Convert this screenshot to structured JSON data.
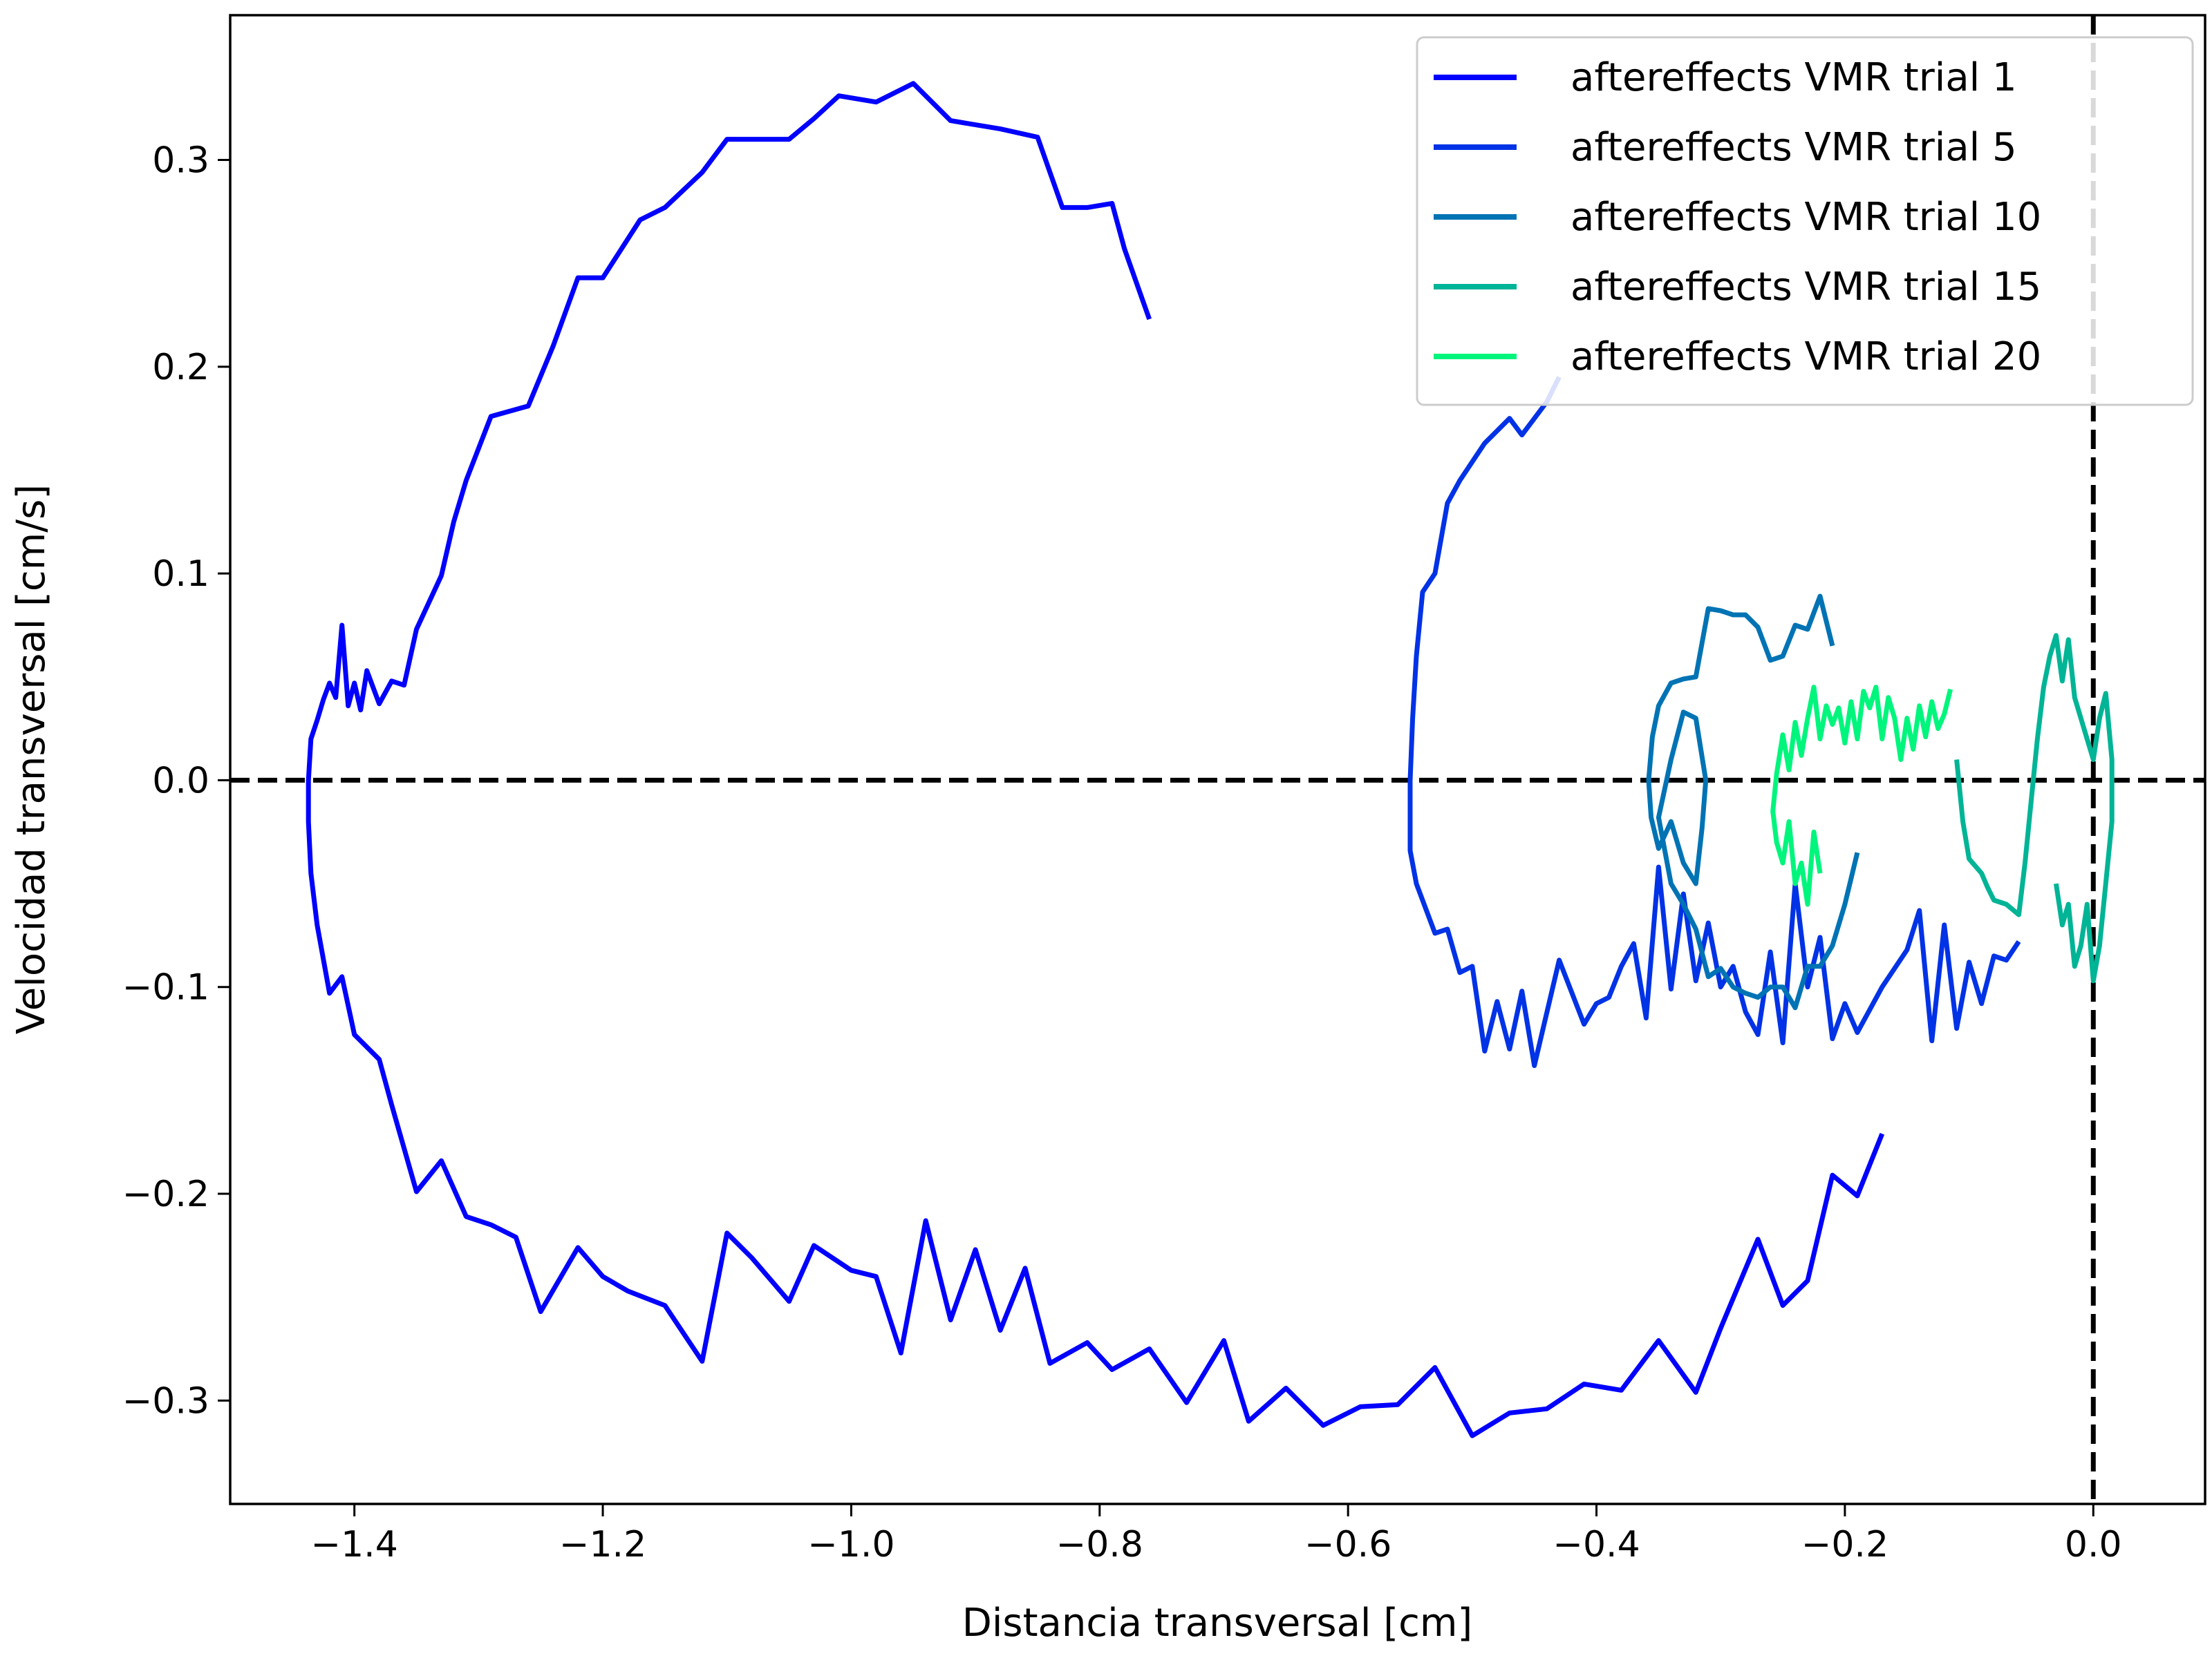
{
  "chart_data": {
    "type": "line",
    "title": "",
    "xlabel": "Distancia transversal [cm]",
    "ylabel": "Velocidad transversal [cm/s]",
    "xlim": [
      -1.5,
      0.09
    ],
    "ylim": [
      -0.35,
      0.37
    ],
    "xticks": [
      -1.4,
      -1.2,
      -1.0,
      -0.8,
      -0.6,
      -0.4,
      -0.2,
      0.0
    ],
    "xtick_labels": [
      "−1.4",
      "−1.2",
      "−1.0",
      "−0.8",
      "−0.6",
      "−0.4",
      "−0.2",
      "0.0"
    ],
    "yticks": [
      -0.3,
      -0.2,
      -0.1,
      0.0,
      0.1,
      0.2,
      0.3
    ],
    "ytick_labels": [
      "−0.3",
      "−0.2",
      "−0.1",
      "0.0",
      "0.1",
      "0.2",
      "0.3"
    ],
    "grid": false,
    "legend_position": "top-right",
    "reference_lines": [
      {
        "orientation": "horizontal",
        "value": 0.0,
        "style": "dashed",
        "color": "#000000"
      },
      {
        "orientation": "vertical",
        "value": 0.0,
        "style": "dashed",
        "color": "#000000"
      }
    ],
    "series": [
      {
        "name": "aftereffects VMR trial 1",
        "color": "#0000ff",
        "points": [
          [
            -0.76,
            0.223
          ],
          [
            -0.78,
            0.257
          ],
          [
            -0.79,
            0.279
          ],
          [
            -0.81,
            0.277
          ],
          [
            -0.83,
            0.277
          ],
          [
            -0.85,
            0.311
          ],
          [
            -0.88,
            0.315
          ],
          [
            -0.92,
            0.319
          ],
          [
            -0.95,
            0.337
          ],
          [
            -0.98,
            0.328
          ],
          [
            -1.01,
            0.331
          ],
          [
            -1.03,
            0.32
          ],
          [
            -1.05,
            0.31
          ],
          [
            -1.08,
            0.31
          ],
          [
            -1.1,
            0.31
          ],
          [
            -1.12,
            0.294
          ],
          [
            -1.15,
            0.277
          ],
          [
            -1.17,
            0.271
          ],
          [
            -1.2,
            0.243
          ],
          [
            -1.22,
            0.243
          ],
          [
            -1.24,
            0.21
          ],
          [
            -1.26,
            0.181
          ],
          [
            -1.29,
            0.176
          ],
          [
            -1.31,
            0.145
          ],
          [
            -1.32,
            0.125
          ],
          [
            -1.33,
            0.099
          ],
          [
            -1.35,
            0.073
          ],
          [
            -1.36,
            0.046
          ],
          [
            -1.37,
            0.048
          ],
          [
            -1.38,
            0.037
          ],
          [
            -1.39,
            0.053
          ],
          [
            -1.395,
            0.034
          ],
          [
            -1.4,
            0.047
          ],
          [
            -1.405,
            0.036
          ],
          [
            -1.41,
            0.075
          ],
          [
            -1.415,
            0.04
          ],
          [
            -1.42,
            0.047
          ],
          [
            -1.425,
            0.039
          ],
          [
            -1.43,
            0.029
          ],
          [
            -1.435,
            0.02
          ],
          [
            -1.437,
            0.0
          ],
          [
            -1.437,
            -0.02
          ],
          [
            -1.435,
            -0.045
          ],
          [
            -1.43,
            -0.07
          ],
          [
            -1.42,
            -0.103
          ],
          [
            -1.41,
            -0.095
          ],
          [
            -1.4,
            -0.123
          ],
          [
            -1.38,
            -0.135
          ],
          [
            -1.37,
            -0.157
          ],
          [
            -1.35,
            -0.199
          ],
          [
            -1.33,
            -0.184
          ],
          [
            -1.31,
            -0.211
          ],
          [
            -1.29,
            -0.215
          ],
          [
            -1.27,
            -0.221
          ],
          [
            -1.25,
            -0.257
          ],
          [
            -1.22,
            -0.226
          ],
          [
            -1.2,
            -0.24
          ],
          [
            -1.18,
            -0.247
          ],
          [
            -1.15,
            -0.254
          ],
          [
            -1.12,
            -0.281
          ],
          [
            -1.1,
            -0.219
          ],
          [
            -1.08,
            -0.231
          ],
          [
            -1.05,
            -0.252
          ],
          [
            -1.03,
            -0.225
          ],
          [
            -1.0,
            -0.237
          ],
          [
            -0.98,
            -0.24
          ],
          [
            -0.96,
            -0.277
          ],
          [
            -0.94,
            -0.213
          ],
          [
            -0.92,
            -0.261
          ],
          [
            -0.9,
            -0.227
          ],
          [
            -0.88,
            -0.266
          ],
          [
            -0.86,
            -0.236
          ],
          [
            -0.84,
            -0.282
          ],
          [
            -0.81,
            -0.272
          ],
          [
            -0.79,
            -0.285
          ],
          [
            -0.76,
            -0.275
          ],
          [
            -0.73,
            -0.301
          ],
          [
            -0.7,
            -0.271
          ],
          [
            -0.68,
            -0.31
          ],
          [
            -0.65,
            -0.294
          ],
          [
            -0.62,
            -0.312
          ],
          [
            -0.59,
            -0.303
          ],
          [
            -0.56,
            -0.302
          ],
          [
            -0.53,
            -0.284
          ],
          [
            -0.5,
            -0.317
          ],
          [
            -0.47,
            -0.306
          ],
          [
            -0.44,
            -0.304
          ],
          [
            -0.41,
            -0.292
          ],
          [
            -0.38,
            -0.295
          ],
          [
            -0.35,
            -0.271
          ],
          [
            -0.32,
            -0.296
          ],
          [
            -0.3,
            -0.265
          ],
          [
            -0.27,
            -0.222
          ],
          [
            -0.25,
            -0.254
          ],
          [
            -0.23,
            -0.242
          ],
          [
            -0.21,
            -0.191
          ],
          [
            -0.19,
            -0.201
          ],
          [
            -0.17,
            -0.171
          ]
        ]
      },
      {
        "name": "aftereffects VMR trial 5",
        "color": "#0032e6",
        "points": [
          [
            -0.43,
            0.195
          ],
          [
            -0.44,
            0.183
          ],
          [
            -0.46,
            0.167
          ],
          [
            -0.47,
            0.175
          ],
          [
            -0.49,
            0.163
          ],
          [
            -0.51,
            0.145
          ],
          [
            -0.52,
            0.134
          ],
          [
            -0.53,
            0.1
          ],
          [
            -0.54,
            0.091
          ],
          [
            -0.545,
            0.06
          ],
          [
            -0.548,
            0.03
          ],
          [
            -0.55,
            0.0
          ],
          [
            -0.55,
            -0.034
          ],
          [
            -0.545,
            -0.05
          ],
          [
            -0.53,
            -0.074
          ],
          [
            -0.52,
            -0.072
          ],
          [
            -0.51,
            -0.093
          ],
          [
            -0.5,
            -0.09
          ],
          [
            -0.49,
            -0.131
          ],
          [
            -0.48,
            -0.107
          ],
          [
            -0.47,
            -0.13
          ],
          [
            -0.46,
            -0.102
          ],
          [
            -0.45,
            -0.138
          ],
          [
            -0.43,
            -0.087
          ],
          [
            -0.41,
            -0.118
          ],
          [
            -0.4,
            -0.108
          ],
          [
            -0.39,
            -0.105
          ],
          [
            -0.38,
            -0.09
          ],
          [
            -0.37,
            -0.079
          ],
          [
            -0.36,
            -0.115
          ],
          [
            -0.35,
            -0.042
          ],
          [
            -0.34,
            -0.101
          ],
          [
            -0.33,
            -0.055
          ],
          [
            -0.32,
            -0.097
          ],
          [
            -0.31,
            -0.069
          ],
          [
            -0.3,
            -0.1
          ],
          [
            -0.29,
            -0.09
          ],
          [
            -0.28,
            -0.112
          ],
          [
            -0.27,
            -0.123
          ],
          [
            -0.26,
            -0.083
          ],
          [
            -0.25,
            -0.127
          ],
          [
            -0.24,
            -0.05
          ],
          [
            -0.23,
            -0.1
          ],
          [
            -0.22,
            -0.076
          ],
          [
            -0.21,
            -0.125
          ],
          [
            -0.2,
            -0.108
          ],
          [
            -0.19,
            -0.122
          ],
          [
            -0.17,
            -0.1
          ],
          [
            -0.15,
            -0.082
          ],
          [
            -0.14,
            -0.063
          ],
          [
            -0.13,
            -0.126
          ],
          [
            -0.12,
            -0.07
          ],
          [
            -0.11,
            -0.12
          ],
          [
            -0.1,
            -0.088
          ],
          [
            -0.09,
            -0.108
          ],
          [
            -0.08,
            -0.085
          ],
          [
            -0.07,
            -0.087
          ],
          [
            -0.06,
            -0.078
          ]
        ]
      },
      {
        "name": "aftereffects VMR trial 10",
        "color": "#0073b4",
        "points": [
          [
            -0.21,
            0.065
          ],
          [
            -0.22,
            0.089
          ],
          [
            -0.23,
            0.073
          ],
          [
            -0.24,
            0.075
          ],
          [
            -0.25,
            0.06
          ],
          [
            -0.26,
            0.058
          ],
          [
            -0.27,
            0.074
          ],
          [
            -0.28,
            0.08
          ],
          [
            -0.29,
            0.08
          ],
          [
            -0.3,
            0.082
          ],
          [
            -0.31,
            0.083
          ],
          [
            -0.32,
            0.05
          ],
          [
            -0.33,
            0.049
          ],
          [
            -0.34,
            0.047
          ],
          [
            -0.35,
            0.036
          ],
          [
            -0.355,
            0.021
          ],
          [
            -0.358,
            0.0
          ],
          [
            -0.356,
            -0.018
          ],
          [
            -0.35,
            -0.033
          ],
          [
            -0.34,
            -0.02
          ],
          [
            -0.33,
            -0.04
          ],
          [
            -0.32,
            -0.05
          ],
          [
            -0.315,
            -0.023
          ],
          [
            -0.312,
            0.0
          ],
          [
            -0.32,
            0.03
          ],
          [
            -0.33,
            0.033
          ],
          [
            -0.34,
            0.01
          ],
          [
            -0.35,
            -0.018
          ],
          [
            -0.34,
            -0.05
          ],
          [
            -0.33,
            -0.06
          ],
          [
            -0.32,
            -0.072
          ],
          [
            -0.31,
            -0.095
          ],
          [
            -0.3,
            -0.091
          ],
          [
            -0.29,
            -0.1
          ],
          [
            -0.28,
            -0.103
          ],
          [
            -0.27,
            -0.105
          ],
          [
            -0.26,
            -0.1
          ],
          [
            -0.25,
            -0.1
          ],
          [
            -0.24,
            -0.11
          ],
          [
            -0.23,
            -0.09
          ],
          [
            -0.22,
            -0.09
          ],
          [
            -0.21,
            -0.08
          ],
          [
            -0.2,
            -0.06
          ],
          [
            -0.19,
            -0.035
          ]
        ]
      },
      {
        "name": "aftereffects VMR trial 15",
        "color": "#00b496",
        "points": [
          [
            -0.11,
            0.01
          ],
          [
            -0.105,
            -0.02
          ],
          [
            -0.1,
            -0.038
          ],
          [
            -0.09,
            -0.045
          ],
          [
            -0.085,
            -0.052
          ],
          [
            -0.08,
            -0.058
          ],
          [
            -0.07,
            -0.06
          ],
          [
            -0.06,
            -0.065
          ],
          [
            -0.055,
            -0.04
          ],
          [
            -0.05,
            -0.01
          ],
          [
            -0.045,
            0.02
          ],
          [
            -0.04,
            0.045
          ],
          [
            -0.035,
            0.06
          ],
          [
            -0.03,
            0.07
          ],
          [
            -0.025,
            0.048
          ],
          [
            -0.02,
            0.068
          ],
          [
            -0.015,
            0.04
          ],
          [
            -0.01,
            0.03
          ],
          [
            -0.005,
            0.02
          ],
          [
            0.0,
            0.01
          ],
          [
            0.005,
            0.03
          ],
          [
            0.01,
            0.042
          ],
          [
            0.015,
            0.01
          ],
          [
            0.015,
            -0.02
          ],
          [
            0.01,
            -0.05
          ],
          [
            0.005,
            -0.08
          ],
          [
            0.0,
            -0.097
          ],
          [
            -0.005,
            -0.06
          ],
          [
            -0.01,
            -0.08
          ],
          [
            -0.015,
            -0.09
          ],
          [
            -0.02,
            -0.06
          ],
          [
            -0.025,
            -0.07
          ],
          [
            -0.03,
            -0.05
          ]
        ]
      },
      {
        "name": "aftereffects VMR trial 20",
        "color": "#00f57d",
        "points": [
          [
            -0.115,
            0.044
          ],
          [
            -0.12,
            0.032
          ],
          [
            -0.125,
            0.025
          ],
          [
            -0.13,
            0.038
          ],
          [
            -0.135,
            0.021
          ],
          [
            -0.14,
            0.036
          ],
          [
            -0.145,
            0.015
          ],
          [
            -0.15,
            0.03
          ],
          [
            -0.155,
            0.01
          ],
          [
            -0.16,
            0.03
          ],
          [
            -0.165,
            0.04
          ],
          [
            -0.17,
            0.02
          ],
          [
            -0.175,
            0.045
          ],
          [
            -0.18,
            0.035
          ],
          [
            -0.185,
            0.043
          ],
          [
            -0.19,
            0.02
          ],
          [
            -0.195,
            0.038
          ],
          [
            -0.2,
            0.018
          ],
          [
            -0.205,
            0.035
          ],
          [
            -0.21,
            0.027
          ],
          [
            -0.215,
            0.036
          ],
          [
            -0.22,
            0.02
          ],
          [
            -0.225,
            0.045
          ],
          [
            -0.23,
            0.03
          ],
          [
            -0.235,
            0.012
          ],
          [
            -0.24,
            0.028
          ],
          [
            -0.245,
            0.005
          ],
          [
            -0.25,
            0.022
          ],
          [
            -0.255,
            0.003
          ],
          [
            -0.258,
            -0.015
          ],
          [
            -0.255,
            -0.03
          ],
          [
            -0.25,
            -0.04
          ],
          [
            -0.245,
            -0.02
          ],
          [
            -0.24,
            -0.05
          ],
          [
            -0.235,
            -0.04
          ],
          [
            -0.23,
            -0.06
          ],
          [
            -0.225,
            -0.025
          ],
          [
            -0.22,
            -0.045
          ]
        ]
      }
    ]
  }
}
